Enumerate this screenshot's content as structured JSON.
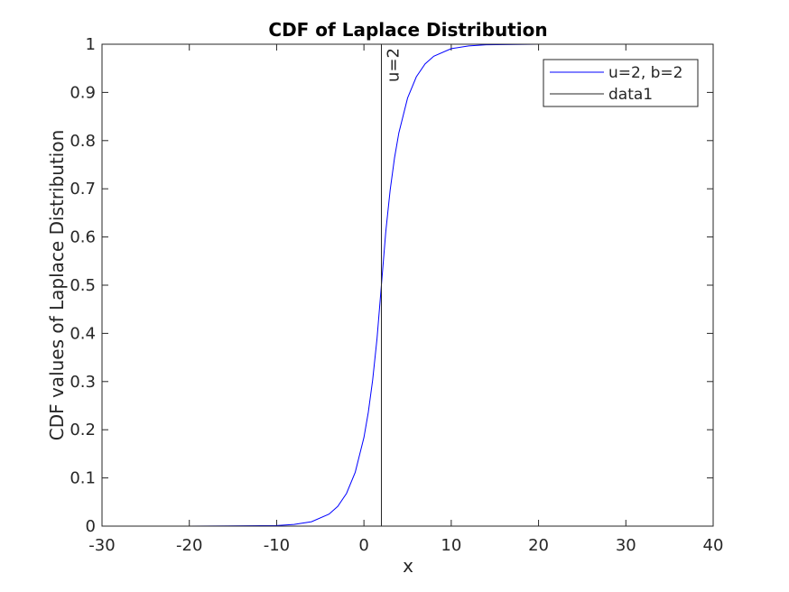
{
  "chart_data": {
    "type": "line",
    "title": "CDF of Laplace Distribution",
    "xlabel": "x",
    "ylabel": "CDF values of Laplace Distribution",
    "xlim": [
      -30,
      40
    ],
    "ylim": [
      0,
      1
    ],
    "x_ticks": [
      "-30",
      "-20",
      "-10",
      "0",
      "10",
      "20",
      "30",
      "40"
    ],
    "y_ticks": [
      "0",
      "0.1",
      "0.2",
      "0.3",
      "0.4",
      "0.5",
      "0.6",
      "0.7",
      "0.8",
      "0.9",
      "1"
    ],
    "grid": false,
    "legend_placement": "top-right",
    "series": [
      {
        "name": "u=2, b=2",
        "color": "#0000ff",
        "x": [
          -30,
          -20,
          -10,
          -8,
          -6,
          -4,
          -3,
          -2,
          -1,
          0,
          0.5,
          1,
          1.5,
          2,
          2.5,
          3,
          3.5,
          4,
          5,
          6,
          7,
          8,
          10,
          12,
          14,
          20,
          34
        ],
        "y": [
          0.0,
          0.0,
          0.0012,
          0.0034,
          0.0092,
          0.0249,
          0.041,
          0.0677,
          0.1116,
          0.1839,
          0.2362,
          0.3033,
          0.3894,
          0.5,
          0.6106,
          0.6967,
          0.7638,
          0.8161,
          0.8884,
          0.9323,
          0.959,
          0.9751,
          0.9908,
          0.9966,
          0.9988,
          0.9999,
          1.0
        ]
      },
      {
        "name": "data1",
        "color": "#262626",
        "x": [
          2,
          2
        ],
        "y": [
          0,
          1
        ]
      }
    ],
    "annotations": [
      {
        "text": "u=2",
        "x": 2,
        "y": 1
      }
    ]
  }
}
